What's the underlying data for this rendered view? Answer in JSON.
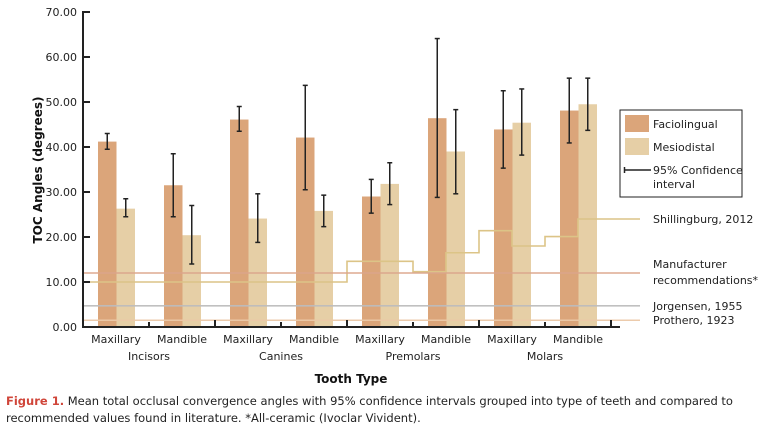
{
  "chart_data": {
    "type": "bar",
    "title": "",
    "xlabel": "Tooth Type",
    "ylabel": "TOC Angles (degrees)",
    "ylim": [
      0,
      70
    ],
    "yticks": [
      "0.00",
      "10.00",
      "20.00",
      "30.00",
      "40.00",
      "50.00",
      "60.00",
      "70.00"
    ],
    "ytick_values": [
      0,
      10,
      20,
      30,
      40,
      50,
      60,
      70
    ],
    "grid": false,
    "categories": [
      "Maxillary",
      "Mandible",
      "Maxillary",
      "Mandible",
      "Maxillary",
      "Mandible",
      "Maxillary",
      "Mandible"
    ],
    "groups": [
      "Incisors",
      "Canines",
      "Premolars",
      "Molars"
    ],
    "series": [
      {
        "name": "Faciolingual",
        "color": "#dba57a",
        "values": [
          41.2,
          31.5,
          46.1,
          42.1,
          29.0,
          46.4,
          43.9,
          48.1
        ],
        "ci_low": [
          39.5,
          24.5,
          43.5,
          30.5,
          25.3,
          28.8,
          35.3,
          40.9
        ],
        "ci_high": [
          43.0,
          38.5,
          49.0,
          53.7,
          32.8,
          64.1,
          52.5,
          55.3
        ]
      },
      {
        "name": "Mesiodistal",
        "color": "#e6cfa6",
        "values": [
          26.3,
          20.4,
          24.1,
          25.8,
          31.8,
          39.0,
          45.4,
          49.5
        ],
        "ci_low": [
          24.5,
          14.0,
          18.8,
          22.3,
          27.2,
          29.6,
          38.2,
          43.7
        ],
        "ci_high": [
          28.5,
          27.0,
          29.6,
          29.3,
          36.5,
          48.3,
          52.9,
          55.3
        ]
      }
    ],
    "legend": {
      "placement": "right",
      "entries": [
        "Faciolingual",
        "Mesiodistal",
        "95% Confidence interval"
      ]
    },
    "reference_lines": [
      {
        "name": "Shillingburg, 2012",
        "color": "#dcc487",
        "type": "step",
        "steps": [
          {
            "from_cat": 0,
            "to_cat": 4.0,
            "value": 10.0
          },
          {
            "from_cat": 4.0,
            "to_cat": 5.0,
            "value": 14.6
          },
          {
            "from_cat": 5.0,
            "to_cat": 5.5,
            "value": 12.3
          },
          {
            "from_cat": 5.5,
            "to_cat": 6.0,
            "value": 16.5
          },
          {
            "from_cat": 6.0,
            "to_cat": 6.5,
            "value": 21.4
          },
          {
            "from_cat": 6.5,
            "to_cat": 7.0,
            "value": 18.0
          },
          {
            "from_cat": 7.0,
            "to_cat": 7.5,
            "value": 20.1
          },
          {
            "from_cat": 7.5,
            "to_cat": 8.0,
            "value": 24.0
          }
        ],
        "label_value": 24.0
      },
      {
        "name": "Manufacturer recommendations*",
        "color": "#dca58c",
        "type": "constant",
        "value": 12.0
      },
      {
        "name": "Jorgensen, 1955",
        "color": "#bdbdbd",
        "type": "constant",
        "value": 4.7
      },
      {
        "name": "Prothero, 1923",
        "color": "#ecc9a8",
        "type": "constant",
        "value": 1.5
      }
    ]
  },
  "caption": {
    "figure_label": "Figure 1.",
    "text": " Mean total occlusal convergence angles with 95% confidence intervals grouped into type of teeth and compared to recommended values found in literature. *All-ceramic (Ivoclar Vivident)."
  },
  "labels": {
    "ref_manufacturer_line1": "Manufacturer",
    "ref_manufacturer_line2": "recommendations*",
    "legend_ci_line1": "95% Confidence",
    "legend_ci_line2": "interval"
  }
}
